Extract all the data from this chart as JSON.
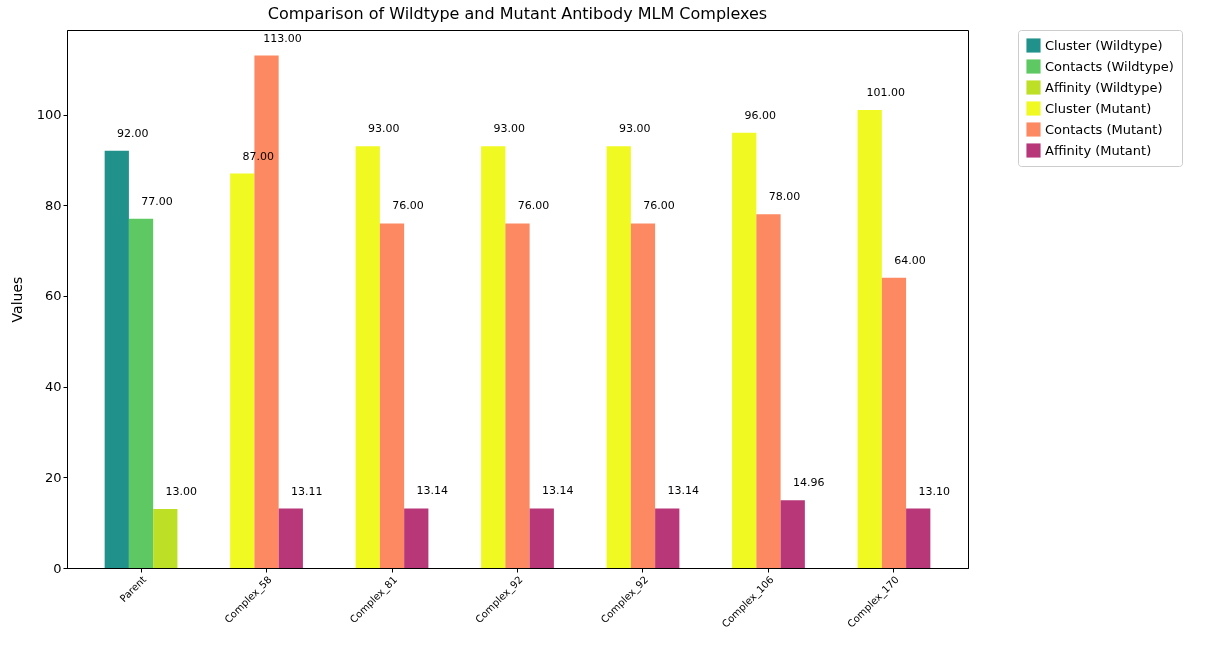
{
  "chart_data": {
    "type": "bar",
    "title": "Comparison of Wildtype and Mutant Antibody MLM Complexes",
    "ylabel": "Values",
    "categories": [
      "Parent",
      "Complex_58",
      "Complex_81",
      "Complex_92",
      "Complex_92",
      "Complex_106",
      "Complex_170"
    ],
    "series": [
      {
        "name": "Cluster (Wildtype)",
        "color": "#21918c",
        "values": [
          92,
          null,
          null,
          null,
          null,
          null,
          null
        ],
        "value_labels": [
          "92.00",
          null,
          null,
          null,
          null,
          null,
          null
        ]
      },
      {
        "name": "Contacts (Wildtype)",
        "color": "#5ec962",
        "values": [
          77,
          null,
          null,
          null,
          null,
          null,
          null
        ],
        "value_labels": [
          "77.00",
          null,
          null,
          null,
          null,
          null,
          null
        ]
      },
      {
        "name": "Affinity (Wildtype)",
        "color": "#bddf26",
        "values": [
          13,
          null,
          null,
          null,
          null,
          null,
          null
        ],
        "value_labels": [
          "13.00",
          null,
          null,
          null,
          null,
          null,
          null
        ]
      },
      {
        "name": "Cluster (Mutant)",
        "color": "#f0f921",
        "values": [
          null,
          87,
          93,
          93,
          93,
          96,
          101
        ],
        "value_labels": [
          null,
          "87.00",
          "93.00",
          "93.00",
          "93.00",
          "96.00",
          "101.00"
        ]
      },
      {
        "name": "Contacts (Mutant)",
        "color": "#fc8961",
        "values": [
          null,
          113,
          76,
          76,
          76,
          78,
          64
        ],
        "value_labels": [
          null,
          "113.00",
          "76.00",
          "76.00",
          "76.00",
          "78.00",
          "64.00"
        ]
      },
      {
        "name": "Affinity (Mutant)",
        "color": "#b73779",
        "values": [
          null,
          13.11,
          13.14,
          13.14,
          13.14,
          14.96,
          13.1
        ],
        "value_labels": [
          null,
          "13.11",
          "13.14",
          "13.14",
          "13.14",
          "14.96",
          "13.10"
        ]
      }
    ],
    "ylim": [
      0,
      118.65
    ],
    "yticks": [
      0,
      20,
      40,
      60,
      80,
      100
    ],
    "grid": false,
    "legend": "top right"
  }
}
